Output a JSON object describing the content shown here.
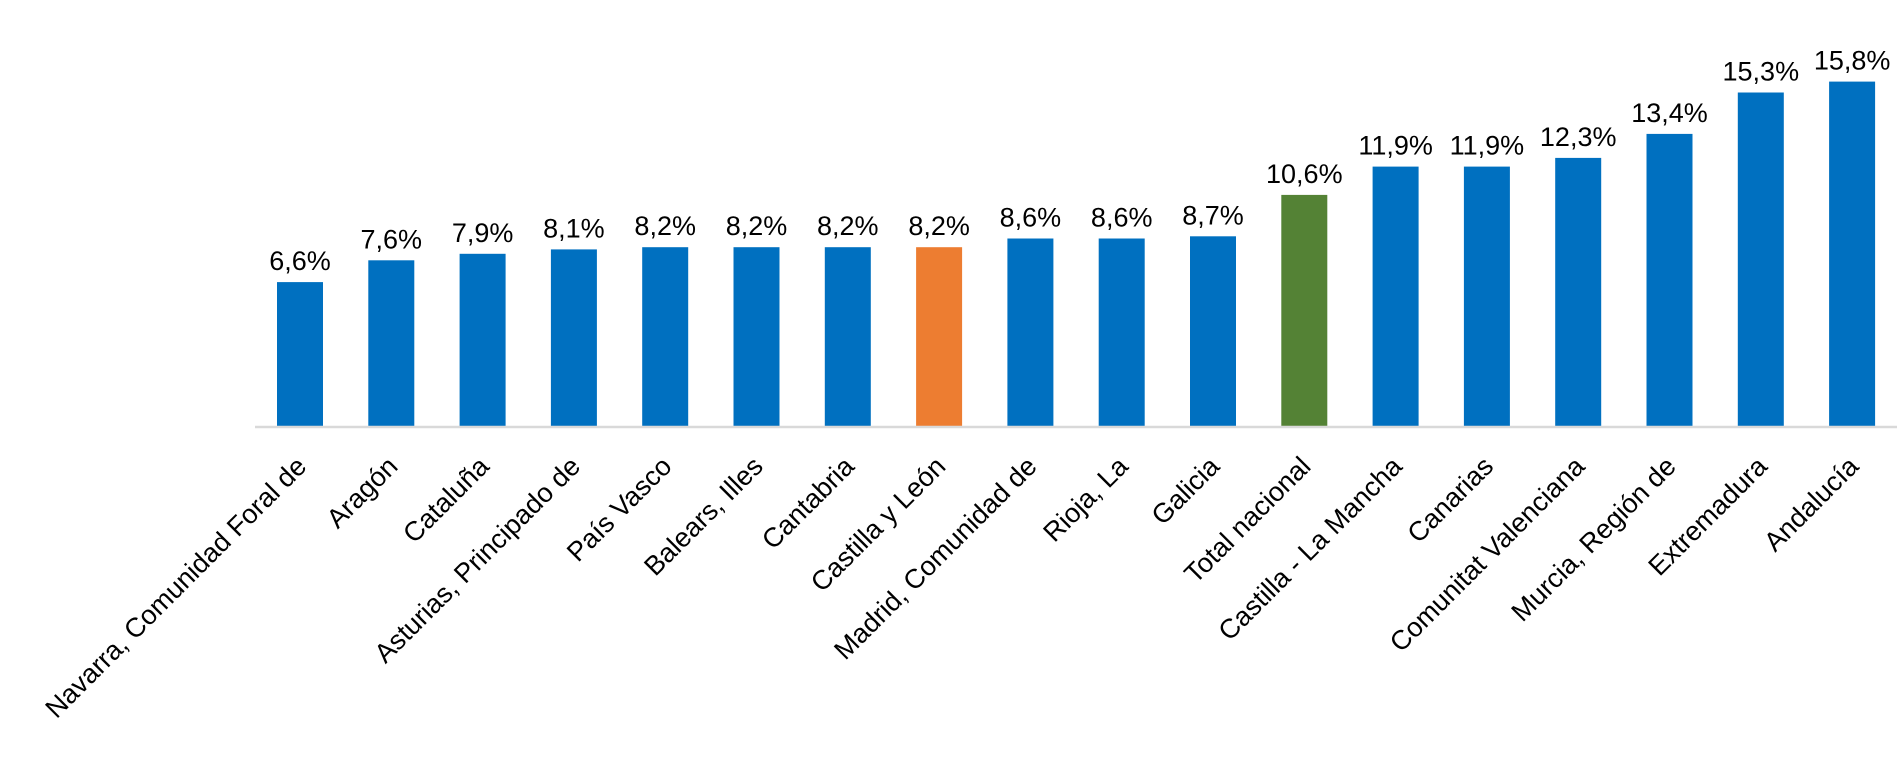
{
  "chart_data": {
    "type": "bar",
    "title": "",
    "xlabel": "",
    "ylabel": "",
    "ylim": [
      0,
      16
    ],
    "grid": false,
    "legend": "none",
    "categories": [
      "Navarra, Comunidad Foral de",
      "Aragón",
      "Cataluña",
      "Asturias, Principado de",
      "País Vasco",
      "Balears, Illes",
      "Cantabria",
      "Castilla y León",
      "Madrid, Comunidad de",
      "Rioja, La",
      "Galicia",
      "Total nacional",
      "Castilla - La Mancha",
      "Canarias",
      "Comunitat Valenciana",
      "Murcia, Región de",
      "Extremadura",
      "Andalucía"
    ],
    "values": [
      6.6,
      7.6,
      7.9,
      8.1,
      8.2,
      8.2,
      8.2,
      8.2,
      8.6,
      8.6,
      8.7,
      10.6,
      11.9,
      11.9,
      12.3,
      13.4,
      15.3,
      15.8
    ],
    "data_labels": [
      "6,6%",
      "7,6%",
      "7,9%",
      "8,1%",
      "8,2%",
      "8,2%",
      "8,2%",
      "8,2%",
      "8,6%",
      "8,6%",
      "8,7%",
      "10,6%",
      "11,9%",
      "11,9%",
      "12,3%",
      "13,4%",
      "15,3%",
      "15,8%"
    ],
    "bar_colors": [
      "#0070C0",
      "#0070C0",
      "#0070C0",
      "#0070C0",
      "#0070C0",
      "#0070C0",
      "#0070C0",
      "#ED7D31",
      "#0070C0",
      "#0070C0",
      "#0070C0",
      "#548235",
      "#0070C0",
      "#0070C0",
      "#0070C0",
      "#0070C0",
      "#0070C0",
      "#0070C0"
    ],
    "axis_color": "#D9D9D9"
  }
}
